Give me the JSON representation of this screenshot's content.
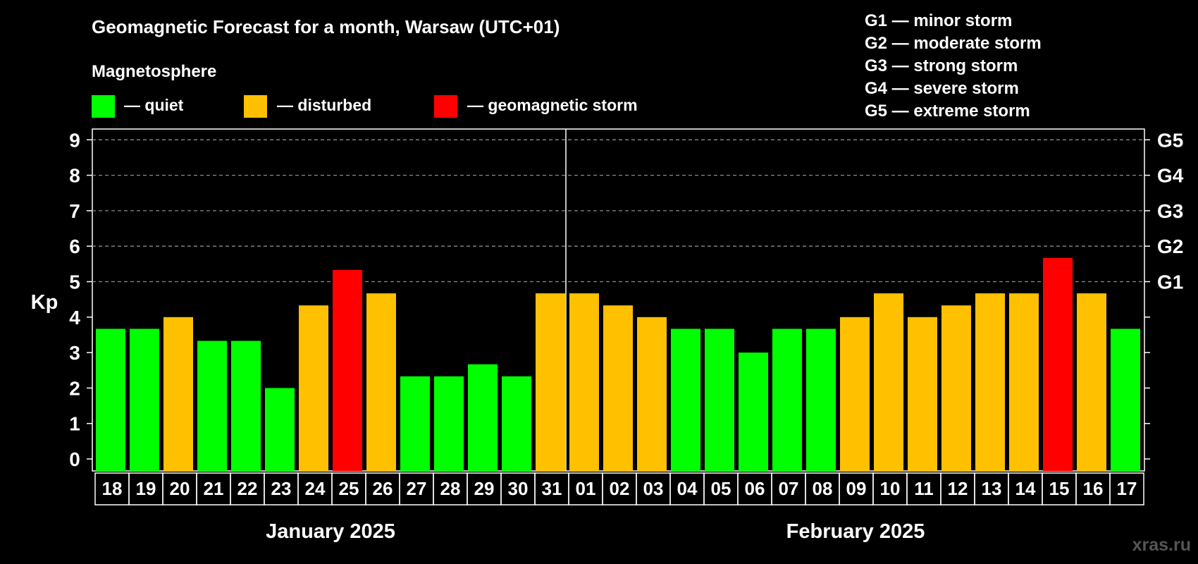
{
  "header": {
    "title": "Geomagnetic Forecast for a month, Warsaw (UTC+01)",
    "subtitle": "Magnetosphere"
  },
  "legend": {
    "quiet": "— quiet",
    "disturbed": "— disturbed",
    "storm": "— geomagnetic storm"
  },
  "storm_scale": [
    "G1 — minor storm",
    "G2 — moderate storm",
    "G3 — strong storm",
    "G4 — severe storm",
    "G5 — extreme storm"
  ],
  "months": {
    "first": "January 2025",
    "second": "February 2025"
  },
  "watermark": "xras.ru",
  "colors": {
    "quiet": "#00ff00",
    "disturbed": "#ffc000",
    "storm": "#ff0000",
    "background": "#000000"
  },
  "chart_data": {
    "type": "bar",
    "ylabel": "Kp",
    "ylim": [
      0,
      9
    ],
    "yticks": [
      "0",
      "1",
      "2",
      "3",
      "4",
      "5",
      "6",
      "7",
      "8",
      "9"
    ],
    "right_axis_labels": [
      {
        "kp": 5,
        "label": "G1"
      },
      {
        "kp": 6,
        "label": "G2"
      },
      {
        "kp": 7,
        "label": "G3"
      },
      {
        "kp": 8,
        "label": "G4"
      },
      {
        "kp": 9,
        "label": "G5"
      }
    ],
    "grid": "dashed horizontal at Kp 6-9",
    "categories": [
      "18",
      "19",
      "20",
      "21",
      "22",
      "23",
      "24",
      "25",
      "26",
      "27",
      "28",
      "29",
      "30",
      "31",
      "01",
      "02",
      "03",
      "04",
      "05",
      "06",
      "07",
      "08",
      "09",
      "10",
      "11",
      "12",
      "13",
      "14",
      "15",
      "16",
      "17"
    ],
    "values": [
      3.67,
      3.67,
      4,
      3.33,
      3.33,
      2,
      4.33,
      5.33,
      4.67,
      2.33,
      2.33,
      2.67,
      2.33,
      4.67,
      4.67,
      4.33,
      4,
      3.67,
      3.67,
      3,
      3.67,
      3.67,
      4,
      4.67,
      4,
      4.33,
      4.67,
      4.67,
      5.67,
      4.67,
      3.67
    ],
    "status": [
      "quiet",
      "quiet",
      "disturbed",
      "quiet",
      "quiet",
      "quiet",
      "disturbed",
      "storm",
      "disturbed",
      "quiet",
      "quiet",
      "quiet",
      "quiet",
      "disturbed",
      "disturbed",
      "disturbed",
      "disturbed",
      "quiet",
      "quiet",
      "quiet",
      "quiet",
      "quiet",
      "disturbed",
      "disturbed",
      "disturbed",
      "disturbed",
      "disturbed",
      "disturbed",
      "storm",
      "disturbed",
      "quiet"
    ]
  }
}
